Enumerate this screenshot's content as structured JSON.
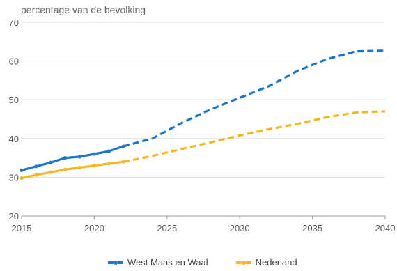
{
  "chart_data": {
    "type": "line",
    "ylabel": "percentage van de bevolking",
    "xlabel": "",
    "xlim": [
      2015,
      2040
    ],
    "ylim": [
      20,
      70
    ],
    "x_ticks": [
      "2015",
      "2020",
      "2025",
      "2030",
      "2035",
      "2040"
    ],
    "y_ticks": [
      "20",
      "30",
      "40",
      "50",
      "60",
      "70"
    ],
    "grid": "horizontal",
    "legend_position": "bottom",
    "projection_start": 2022,
    "series": [
      {
        "name": "West Maas en Waal",
        "color": "#1f77c9",
        "points": [
          [
            2015,
            31.8
          ],
          [
            2016,
            32.8
          ],
          [
            2017,
            33.8
          ],
          [
            2018,
            35.0
          ],
          [
            2019,
            35.3
          ],
          [
            2020,
            36.0
          ],
          [
            2021,
            36.7
          ],
          [
            2022,
            38.0
          ],
          [
            2024,
            40.0
          ],
          [
            2026,
            44.0
          ],
          [
            2028,
            47.5
          ],
          [
            2030,
            50.5
          ],
          [
            2032,
            53.5
          ],
          [
            2034,
            57.5
          ],
          [
            2036,
            60.5
          ],
          [
            2038,
            62.5
          ],
          [
            2040,
            62.7
          ]
        ]
      },
      {
        "name": "Nederland",
        "color": "#f5b820",
        "points": [
          [
            2015,
            29.8
          ],
          [
            2016,
            30.6
          ],
          [
            2017,
            31.3
          ],
          [
            2018,
            32.0
          ],
          [
            2019,
            32.5
          ],
          [
            2020,
            33.0
          ],
          [
            2021,
            33.5
          ],
          [
            2022,
            34.0
          ],
          [
            2024,
            35.5
          ],
          [
            2026,
            37.3
          ],
          [
            2028,
            39.0
          ],
          [
            2030,
            40.8
          ],
          [
            2032,
            42.4
          ],
          [
            2034,
            43.8
          ],
          [
            2036,
            45.5
          ],
          [
            2038,
            46.7
          ],
          [
            2040,
            47.0
          ]
        ]
      }
    ]
  }
}
